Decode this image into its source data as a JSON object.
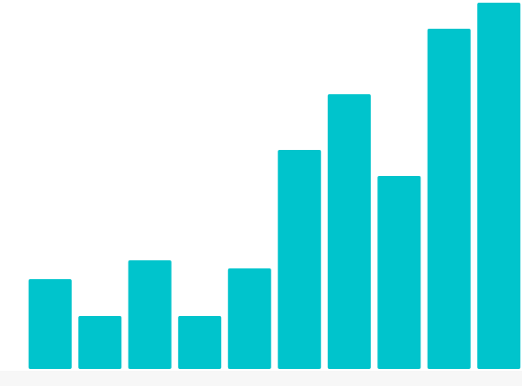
{
  "chart_data": {
    "type": "bar",
    "categories": [
      null,
      null,
      null,
      null,
      null,
      null,
      null,
      null,
      null,
      null
    ],
    "values": [
      100,
      59,
      121,
      59,
      112,
      244,
      306,
      215,
      379,
      408
    ],
    "color": "#00c4cc",
    "ylim": [
      0,
      408
    ]
  }
}
